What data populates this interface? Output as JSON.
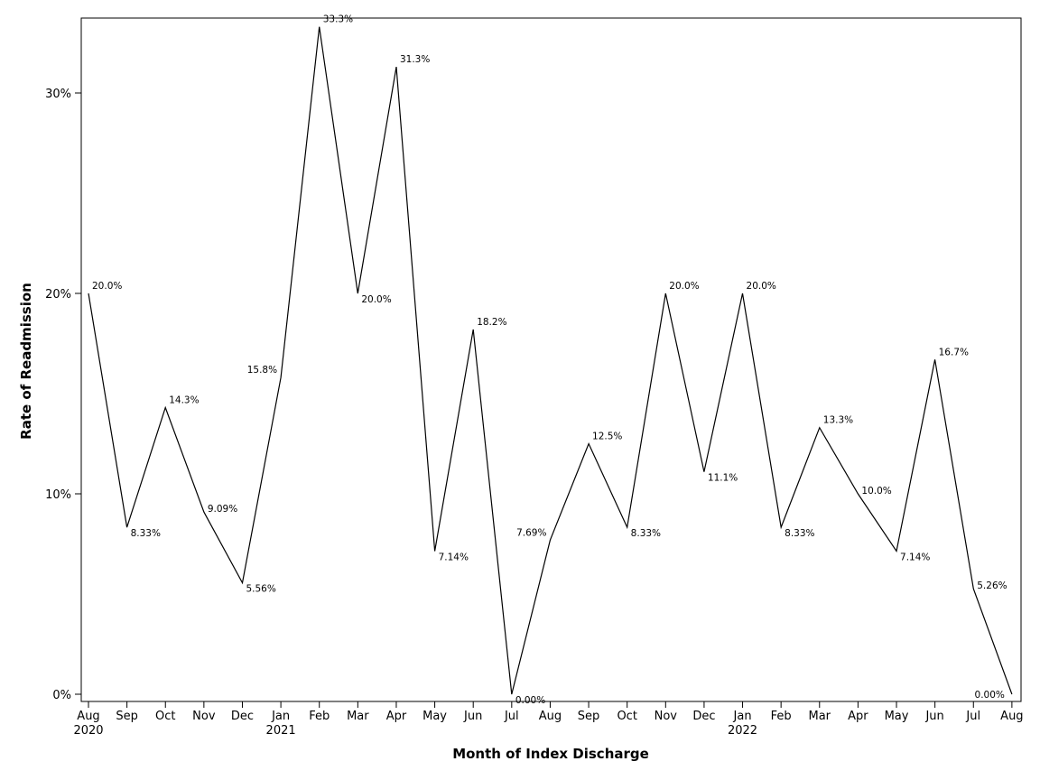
{
  "chart_data": {
    "type": "line",
    "xlabel": "Month of Index Discharge",
    "ylabel": "Rate of Readmission",
    "ylim": [
      0,
      0.34
    ],
    "grid": false,
    "legend": "none",
    "y_ticks": [
      {
        "value": 0,
        "label": "0%"
      },
      {
        "value": 0.1,
        "label": "10%"
      },
      {
        "value": 0.2,
        "label": "20%"
      },
      {
        "value": 0.3,
        "label": "30%"
      }
    ],
    "x": [
      "Aug 2020",
      "Sep 2020",
      "Oct 2020",
      "Nov 2020",
      "Dec 2020",
      "Jan 2021",
      "Feb 2021",
      "Mar 2021",
      "Apr 2021",
      "May 2021",
      "Jun 2021",
      "Jul 2021",
      "Aug 2021",
      "Sep 2021",
      "Oct 2021",
      "Nov 2021",
      "Dec 2021",
      "Jan 2022",
      "Feb 2022",
      "Mar 2022",
      "Apr 2022",
      "May 2022",
      "Jun 2022",
      "Jul 2022",
      "Aug 2022"
    ],
    "x_tick_labels": [
      {
        "month": "Aug",
        "year": "2020"
      },
      {
        "month": "Sep",
        "year": ""
      },
      {
        "month": "Oct",
        "year": ""
      },
      {
        "month": "Nov",
        "year": ""
      },
      {
        "month": "Dec",
        "year": ""
      },
      {
        "month": "Jan",
        "year": "2021"
      },
      {
        "month": "Feb",
        "year": ""
      },
      {
        "month": "Mar",
        "year": ""
      },
      {
        "month": "Apr",
        "year": ""
      },
      {
        "month": "May",
        "year": ""
      },
      {
        "month": "Jun",
        "year": ""
      },
      {
        "month": "Jul",
        "year": ""
      },
      {
        "month": "Aug",
        "year": ""
      },
      {
        "month": "Sep",
        "year": ""
      },
      {
        "month": "Oct",
        "year": ""
      },
      {
        "month": "Nov",
        "year": ""
      },
      {
        "month": "Dec",
        "year": ""
      },
      {
        "month": "Jan",
        "year": "2022"
      },
      {
        "month": "Feb",
        "year": ""
      },
      {
        "month": "Mar",
        "year": ""
      },
      {
        "month": "Apr",
        "year": ""
      },
      {
        "month": "May",
        "year": ""
      },
      {
        "month": "Jun",
        "year": ""
      },
      {
        "month": "Jul",
        "year": ""
      },
      {
        "month": "Aug",
        "year": ""
      }
    ],
    "series": [
      {
        "color": "#000000",
        "values": [
          0.2,
          0.0833,
          0.143,
          0.0909,
          0.0556,
          0.158,
          0.333,
          0.2,
          0.313,
          0.0714,
          0.182,
          0.0,
          0.0769,
          0.125,
          0.0833,
          0.2,
          0.111,
          0.2,
          0.0833,
          0.133,
          0.1,
          0.0714,
          0.167,
          0.0526,
          0.0
        ],
        "data_labels": [
          "20.0%",
          "8.33%",
          "14.3%",
          "9.09%",
          "5.56%",
          "15.8%",
          "33.3%",
          "20.0%",
          "31.3%",
          "7.14%",
          "18.2%",
          "0.00%",
          "7.69%",
          "12.5%",
          "8.33%",
          "20.0%",
          "11.1%",
          "20.0%",
          "8.33%",
          "13.3%",
          "10.0%",
          "7.14%",
          "16.7%",
          "5.26%",
          "0.00%"
        ]
      }
    ]
  }
}
